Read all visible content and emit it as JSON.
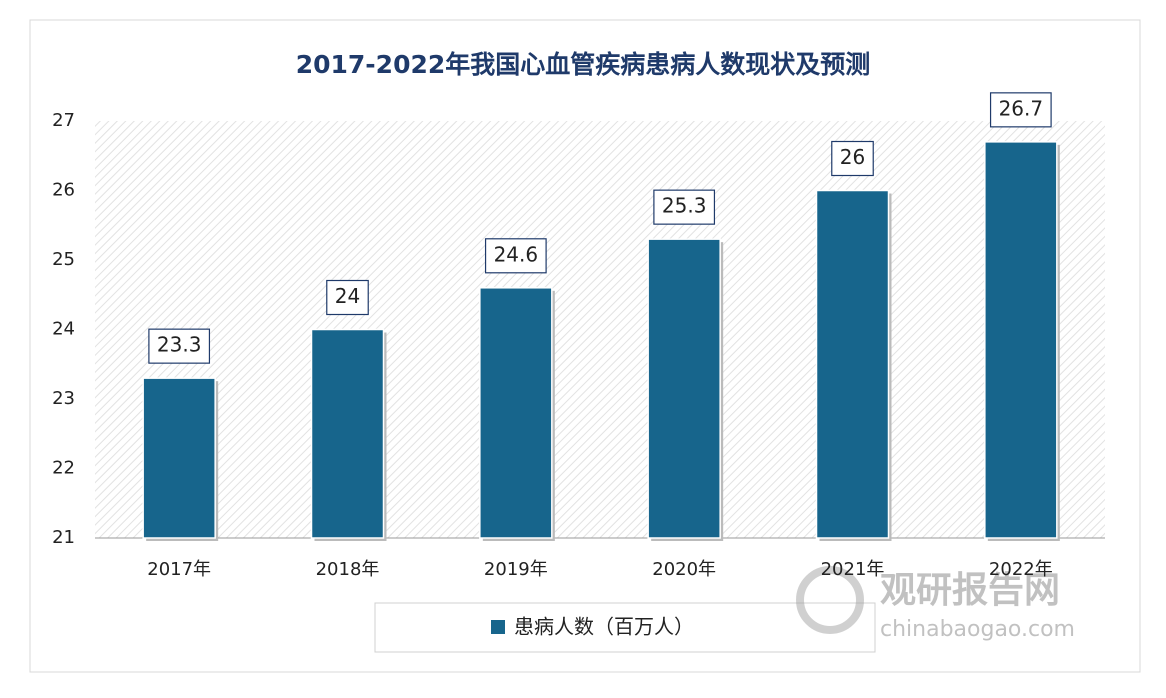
{
  "chart_data": {
    "type": "bar",
    "title": "2017-2022年我国心血管疾病患病人数现状及预测",
    "categories": [
      "2017年",
      "2018年",
      "2019年",
      "2020年",
      "2021年",
      "2022年"
    ],
    "series": [
      {
        "name": "患病人数（百万人）",
        "color": "#17658c",
        "values": [
          23.3,
          24,
          24.6,
          25.3,
          26,
          26.7
        ]
      }
    ],
    "ylim": [
      21,
      27
    ],
    "yticks": [
      21,
      22,
      23,
      24,
      25,
      26,
      27
    ],
    "legend": "bottom"
  },
  "watermark": {
    "brand": "观研报告网",
    "url": "chinabaogao.com"
  }
}
